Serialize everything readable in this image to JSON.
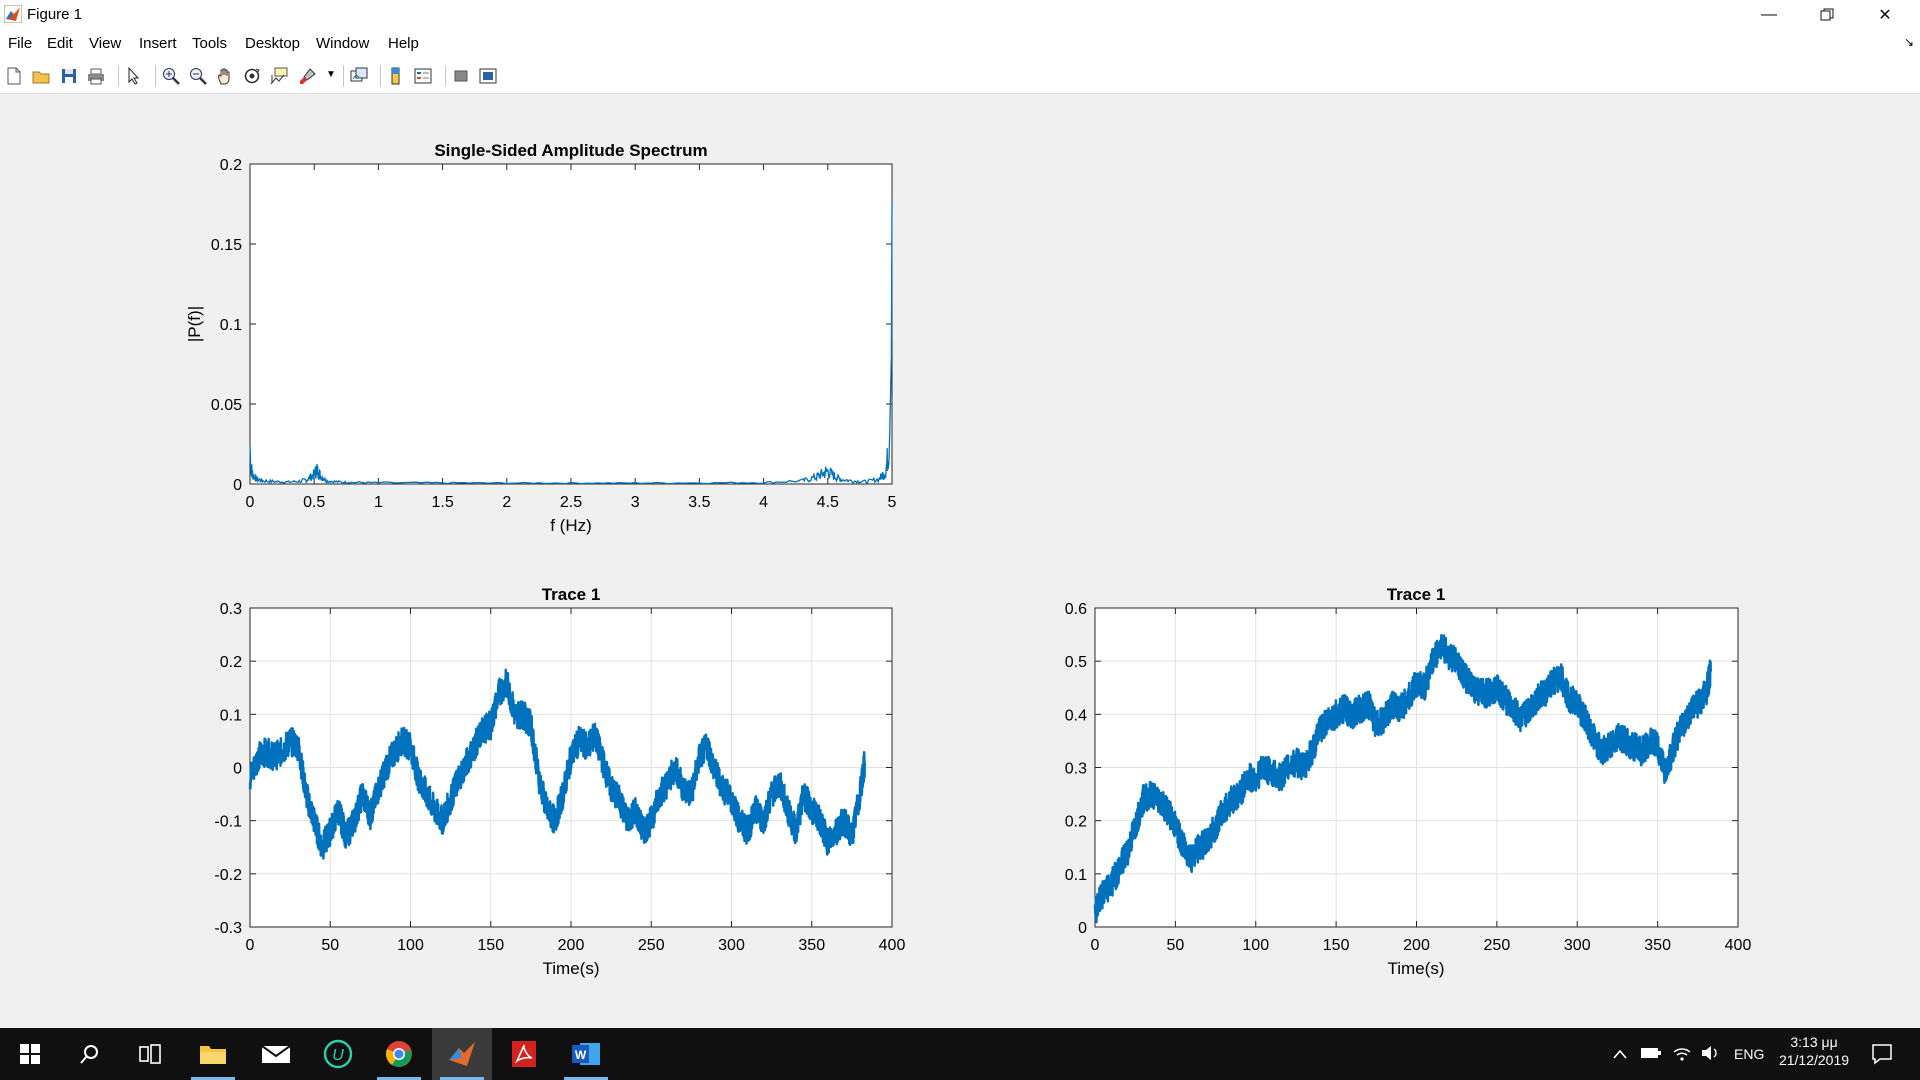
{
  "window": {
    "title": "Figure 1"
  },
  "menu": [
    "File",
    "Edit",
    "View",
    "Insert",
    "Tools",
    "Desktop",
    "Window",
    "Help"
  ],
  "toolbar_icons": [
    "new-figure-icon",
    "open-file-icon",
    "save-icon",
    "print-icon",
    "edit-plot-icon",
    "zoom-in-icon",
    "zoom-out-icon",
    "pan-icon",
    "rotate-3d-icon",
    "data-cursor-icon",
    "brush-icon",
    "link-plot-icon",
    "insert-colorbar-icon",
    "insert-legend-icon",
    "hide-plot-tools-icon",
    "show-plot-tools-icon"
  ],
  "colors": {
    "line": "#0072bd",
    "grid": "#e1e1e1",
    "axes_bg": "#ffffff",
    "figure_bg": "#f0f0f0"
  },
  "chart_data": [
    {
      "type": "line",
      "title": "Single-Sided Amplitude Spectrum",
      "xlabel": "f (Hz)",
      "ylabel": "|P(f)|",
      "xlim": [
        0,
        5
      ],
      "ylim": [
        0,
        0.2
      ],
      "xticks": [
        "0",
        "0.5",
        "1",
        "1.5",
        "2",
        "2.5",
        "3",
        "3.5",
        "4",
        "4.5",
        "5"
      ],
      "yticks": [
        "0",
        "0.05",
        "0.1",
        "0.15",
        "0.2"
      ],
      "grid": false,
      "series": [
        {
          "x": [
            0,
            0.005,
            0.02,
            0.05,
            0.1,
            0.2,
            0.3,
            0.4,
            0.45,
            0.5,
            0.52,
            0.55,
            0.6,
            0.7,
            0.8,
            1,
            1.5,
            2,
            2.5,
            3,
            3.5,
            4,
            4.3,
            4.4,
            4.45,
            4.5,
            4.55,
            4.6,
            4.7,
            4.8,
            4.9,
            4.95,
            4.98,
            4.995,
            5
          ],
          "y": [
            0.024,
            0.012,
            0.006,
            0.003,
            0.002,
            0.0015,
            0.0012,
            0.0018,
            0.003,
            0.006,
            0.009,
            0.005,
            0.002,
            0.0012,
            0.001,
            0.0008,
            0.0007,
            0.0006,
            0.0006,
            0.0006,
            0.0007,
            0.0009,
            0.002,
            0.004,
            0.006,
            0.008,
            0.005,
            0.003,
            0.0018,
            0.0015,
            0.003,
            0.008,
            0.024,
            0.08,
            0.175
          ]
        }
      ]
    },
    {
      "type": "line",
      "title": "Trace 1",
      "xlabel": "Time(s)",
      "ylabel": "",
      "xlim": [
        0,
        400
      ],
      "ylim": [
        -0.3,
        0.3
      ],
      "xticks": [
        "0",
        "50",
        "100",
        "150",
        "200",
        "250",
        "300",
        "350",
        "400"
      ],
      "yticks": [
        "-0.3",
        "-0.2",
        "-0.1",
        "0",
        "0.1",
        "0.2",
        "0.3"
      ],
      "grid": true,
      "series": [
        {
          "x": [
            0,
            5,
            10,
            15,
            20,
            25,
            30,
            35,
            40,
            45,
            50,
            55,
            60,
            65,
            70,
            75,
            80,
            85,
            90,
            95,
            100,
            105,
            110,
            115,
            120,
            125,
            130,
            135,
            140,
            145,
            150,
            155,
            160,
            165,
            170,
            175,
            180,
            185,
            190,
            195,
            200,
            205,
            210,
            215,
            220,
            225,
            230,
            235,
            240,
            245,
            250,
            255,
            260,
            265,
            270,
            275,
            280,
            285,
            290,
            295,
            300,
            305,
            310,
            315,
            320,
            325,
            330,
            335,
            340,
            345,
            350,
            355,
            360,
            365,
            370,
            375,
            380,
            383
          ],
          "y": [
            -0.02,
            0.02,
            0.03,
            0.02,
            0.03,
            0.05,
            0.04,
            -0.05,
            -0.1,
            -0.15,
            -0.12,
            -0.08,
            -0.13,
            -0.1,
            -0.05,
            -0.09,
            -0.04,
            0,
            0.03,
            0.05,
            0.04,
            -0.02,
            -0.05,
            -0.08,
            -0.1,
            -0.06,
            -0.02,
            0.01,
            0.04,
            0.07,
            0.08,
            0.14,
            0.16,
            0.1,
            0.1,
            0.08,
            -0.02,
            -0.08,
            -0.1,
            -0.05,
            0.02,
            0.05,
            0.04,
            0.06,
            0.01,
            -0.04,
            -0.06,
            -0.1,
            -0.08,
            -0.12,
            -0.1,
            -0.05,
            -0.03,
            0,
            -0.04,
            -0.05,
            0.02,
            0.04,
            -0.01,
            -0.04,
            -0.06,
            -0.1,
            -0.12,
            -0.08,
            -0.1,
            -0.05,
            -0.03,
            -0.08,
            -0.12,
            -0.05,
            -0.08,
            -0.1,
            -0.14,
            -0.12,
            -0.1,
            -0.13,
            -0.05,
            0.01
          ]
        }
      ]
    },
    {
      "type": "line",
      "title": "Trace 1",
      "xlabel": "Time(s)",
      "ylabel": "",
      "xlim": [
        0,
        400
      ],
      "ylim": [
        0,
        0.6
      ],
      "xticks": [
        "0",
        "50",
        "100",
        "150",
        "200",
        "250",
        "300",
        "350",
        "400"
      ],
      "yticks": [
        "0",
        "0.1",
        "0.2",
        "0.3",
        "0.4",
        "0.5",
        "0.6"
      ],
      "grid": true,
      "series": [
        {
          "x": [
            0,
            5,
            10,
            15,
            20,
            25,
            30,
            35,
            40,
            45,
            50,
            55,
            60,
            65,
            70,
            75,
            80,
            85,
            90,
            95,
            100,
            105,
            110,
            115,
            120,
            125,
            130,
            135,
            140,
            145,
            150,
            155,
            160,
            165,
            170,
            175,
            180,
            185,
            190,
            195,
            200,
            205,
            210,
            215,
            220,
            225,
            230,
            235,
            240,
            245,
            250,
            255,
            260,
            265,
            270,
            275,
            280,
            285,
            290,
            295,
            300,
            305,
            310,
            315,
            320,
            325,
            330,
            335,
            340,
            345,
            350,
            355,
            360,
            365,
            370,
            375,
            380,
            383
          ],
          "y": [
            0.03,
            0.06,
            0.08,
            0.11,
            0.14,
            0.19,
            0.24,
            0.25,
            0.24,
            0.22,
            0.19,
            0.15,
            0.13,
            0.15,
            0.16,
            0.19,
            0.22,
            0.24,
            0.25,
            0.28,
            0.28,
            0.3,
            0.29,
            0.28,
            0.3,
            0.31,
            0.3,
            0.33,
            0.37,
            0.39,
            0.4,
            0.41,
            0.4,
            0.41,
            0.42,
            0.38,
            0.39,
            0.42,
            0.41,
            0.43,
            0.46,
            0.45,
            0.5,
            0.53,
            0.51,
            0.5,
            0.47,
            0.45,
            0.44,
            0.44,
            0.45,
            0.43,
            0.41,
            0.39,
            0.41,
            0.43,
            0.44,
            0.46,
            0.47,
            0.43,
            0.42,
            0.39,
            0.36,
            0.33,
            0.34,
            0.36,
            0.35,
            0.34,
            0.33,
            0.35,
            0.34,
            0.29,
            0.34,
            0.38,
            0.4,
            0.42,
            0.44,
            0.48
          ]
        }
      ]
    }
  ],
  "taskbar": {
    "apps": [
      "windows-start-icon",
      "search-icon",
      "task-view-icon",
      "file-explorer-icon",
      "mail-icon",
      "app-u-icon",
      "chrome-icon",
      "matlab-icon",
      "acrobat-icon",
      "word-icon"
    ],
    "language": "ENG",
    "time": "3:13 μμ",
    "date": "21/12/2019"
  }
}
